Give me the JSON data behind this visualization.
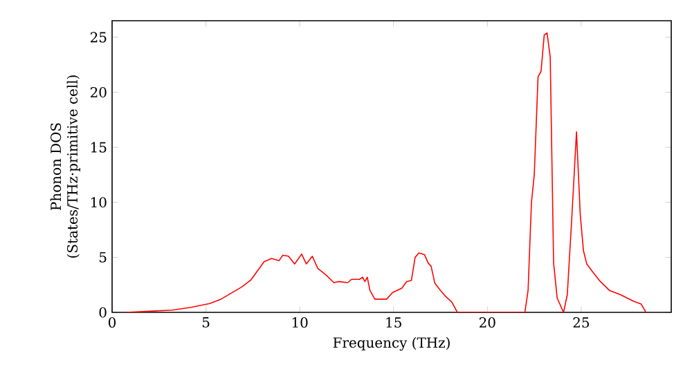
{
  "chart_data": {
    "type": "line",
    "xlabel": "Frequency (THz)",
    "ylabel": "Phonon DOS\n(States/THz·primitive cell)",
    "xlim": [
      0,
      29.8
    ],
    "ylim": [
      0,
      26.5
    ],
    "xticks": [
      0,
      5,
      10,
      15,
      20,
      25
    ],
    "yticks": [
      0,
      5,
      10,
      15,
      20,
      25
    ],
    "grid": false,
    "series": [
      {
        "color": "#ff0000",
        "x": [
          0.75,
          2,
          3.2,
          4.2,
          5.2,
          5.8,
          6.4,
          6.9,
          7.4,
          8.1,
          8.5,
          8.9,
          9.1,
          9.4,
          9.73,
          10.1,
          10.35,
          10.67,
          10.96,
          11.4,
          11.82,
          12.07,
          12.56,
          12.76,
          13.18,
          13.35,
          13.47,
          13.6,
          13.74,
          14.0,
          14.63,
          14.95,
          15.44,
          15.7,
          15.95,
          16.15,
          16.35,
          16.65,
          16.84,
          17.0,
          17.2,
          17.5,
          17.8,
          18.1,
          18.4,
          22.0,
          22.17,
          22.35,
          22.5,
          22.7,
          22.86,
          23.03,
          23.18,
          23.35,
          23.53,
          23.72,
          24.06,
          24.26,
          24.5,
          24.75,
          24.95,
          25.12,
          25.3,
          25.6,
          25.97,
          26.5,
          27.1,
          27.8,
          28.2,
          28.45
        ],
        "values": [
          0,
          0.1,
          0.2,
          0.45,
          0.8,
          1.2,
          1.8,
          2.3,
          2.95,
          4.6,
          4.9,
          4.7,
          5.2,
          5.1,
          4.4,
          5.3,
          4.4,
          5.1,
          4.0,
          3.4,
          2.7,
          2.8,
          2.7,
          3.0,
          3.0,
          3.2,
          2.8,
          3.2,
          2.0,
          1.2,
          1.2,
          1.8,
          2.2,
          2.8,
          2.9,
          5.0,
          5.4,
          5.25,
          4.5,
          4.2,
          2.65,
          2.0,
          1.4,
          0.95,
          0,
          0,
          2.0,
          10.0,
          12.5,
          21.4,
          21.9,
          25.2,
          25.4,
          23.2,
          4.5,
          1.3,
          0,
          1.6,
          8.6,
          16.4,
          8.9,
          5.6,
          4.4,
          3.7,
          2.9,
          2.0,
          1.6,
          1.0,
          0.75,
          0
        ]
      }
    ]
  }
}
